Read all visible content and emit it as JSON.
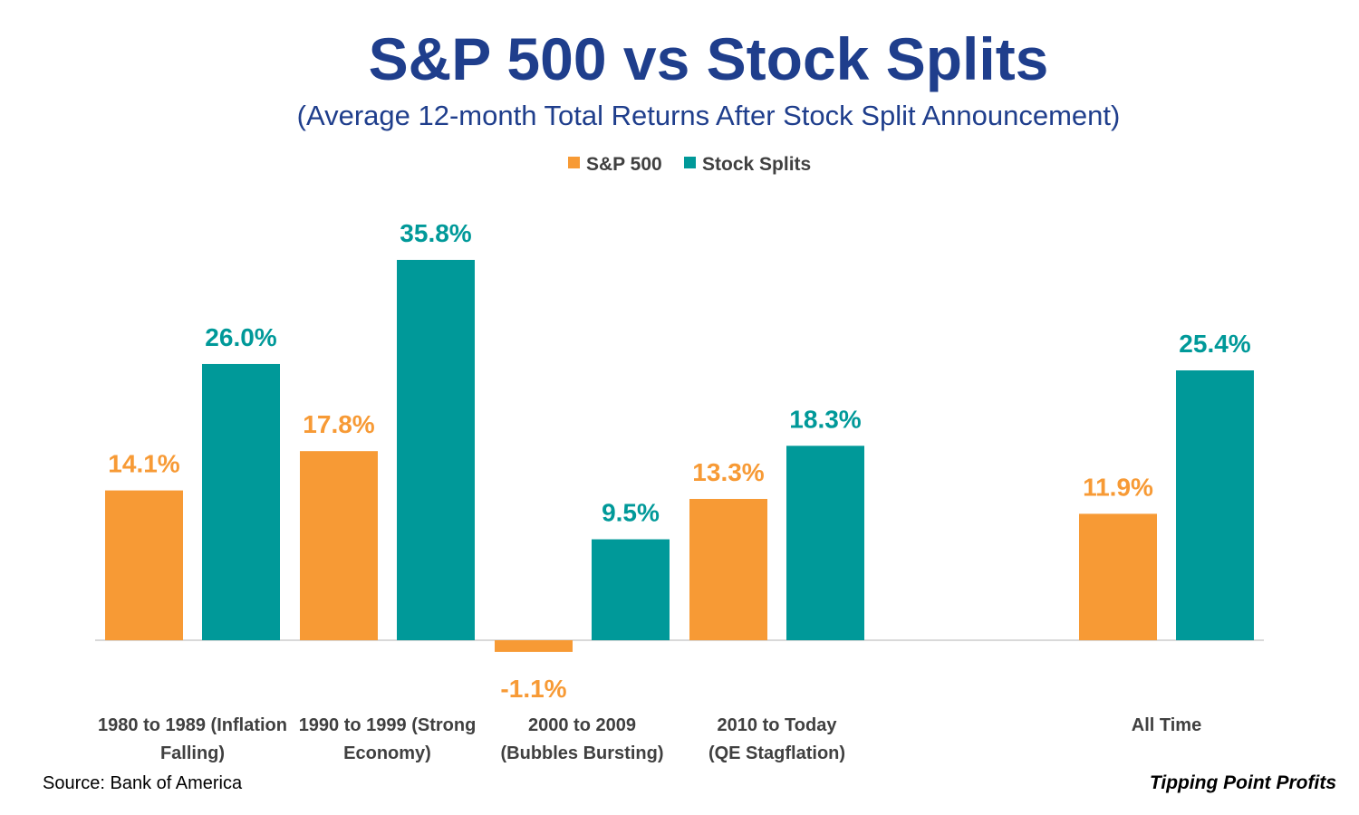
{
  "chart_data": {
    "type": "bar",
    "title": "S&P 500 vs Stock Splits",
    "subtitle": "(Average 12-month Total Returns After Stock Split Announcement)",
    "categories": [
      [
        "1980 to 1989 (Inflation",
        "Falling)"
      ],
      [
        "1990 to 1999 (Strong",
        "Economy)"
      ],
      [
        "2000 to 2009",
        "(Bubbles Bursting)"
      ],
      [
        "2010 to Today",
        "(QE Stagflation)"
      ],
      [
        ""
      ],
      [
        "All Time"
      ]
    ],
    "series": [
      {
        "name": "S&P 500",
        "color": "#f79a35",
        "values": [
          14.1,
          17.8,
          -1.1,
          13.3,
          null,
          11.9
        ],
        "labels": [
          "14.1%",
          "17.8%",
          "-1.1%",
          "13.3%",
          "",
          "11.9%"
        ]
      },
      {
        "name": "Stock Splits",
        "color": "#009999",
        "values": [
          26.0,
          35.8,
          9.5,
          18.3,
          null,
          25.4
        ],
        "labels": [
          "26.0%",
          "35.8%",
          "9.5%",
          "18.3%",
          "",
          "25.4%"
        ]
      }
    ],
    "ylim": [
      -2,
      38
    ],
    "grid": false,
    "legend_position": "top-center",
    "xlabel": "",
    "ylabel": ""
  },
  "footer": {
    "source": "Source: Bank of America",
    "brand": "Tipping Point Profits"
  },
  "colors": {
    "title": "#1f3e8c",
    "axis_line": "#d9d9d9",
    "text": "#404040"
  }
}
